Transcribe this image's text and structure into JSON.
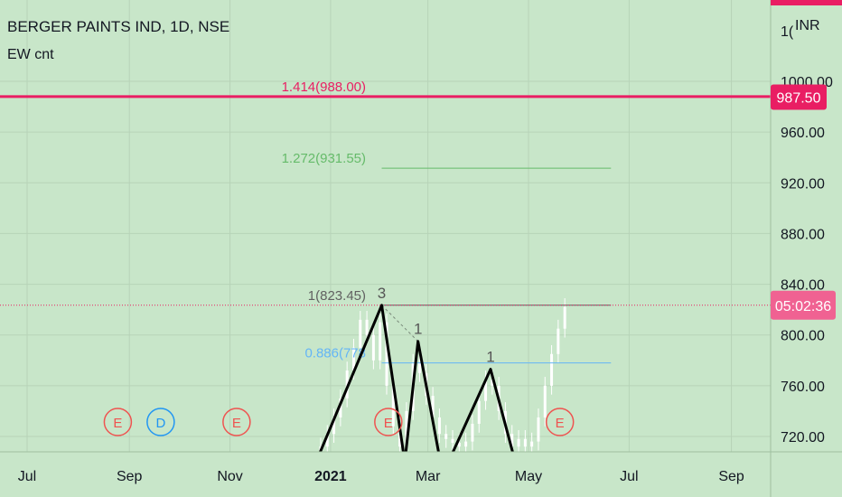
{
  "header": {
    "title": "BERGER PAINTS IND, 1D, NSE",
    "indicator": "EW cnt",
    "currency": "INR"
  },
  "colors": {
    "background": "#c8e6c9",
    "candle": "#ffffff",
    "wave_line": "#000000",
    "fib_1414": "#e91e63",
    "fib_1272": "#66bb6a",
    "fib_1": "#616161",
    "fib_0886": "#64b5f6",
    "price_badge": "#e91e63",
    "earnings": "#ef5350",
    "dividend": "#2196f3"
  },
  "chart_data": {
    "type": "candlestick",
    "symbol": "BERGER PAINTS IND",
    "timeframe": "1D",
    "exchange": "NSE",
    "currency": "INR",
    "ylim": [
      700,
      1040
    ],
    "y_ticks": [
      720,
      760,
      800,
      840,
      880,
      920,
      960,
      1000
    ],
    "y_tick_labels": [
      "720.00",
      "760.00",
      "800.00",
      "840.00",
      "880.00",
      "920.00",
      "960.00",
      "1000.00"
    ],
    "top_clipped_tick": "1(",
    "x_ticks": [
      {
        "date": "2020-07-01",
        "label": "Jul"
      },
      {
        "date": "2020-09-01",
        "label": "Sep"
      },
      {
        "date": "2020-11-01",
        "label": "Nov"
      },
      {
        "date": "2021-01-01",
        "label": "2021",
        "bold": true
      },
      {
        "date": "2021-03-01",
        "label": "Mar"
      },
      {
        "date": "2021-05-01",
        "label": "May"
      },
      {
        "date": "2021-07-01",
        "label": "Jul"
      },
      {
        "date": "2021-09-01",
        "label": "Sep"
      }
    ],
    "price_line": {
      "value": 987.5,
      "label": "987.50"
    },
    "countdown": {
      "value": 823.45,
      "label": "05:02:36"
    },
    "fib_levels": [
      {
        "ratio_label": "1.414(988.00)",
        "value": 988.0,
        "start": "2020-05-01",
        "end": "2021-09-30"
      },
      {
        "ratio_label": "1.272(931.55)",
        "value": 931.55,
        "start": "2021-02-01",
        "end": "2021-06-20"
      },
      {
        "ratio_label": "1(823.45)",
        "value": 823.45,
        "start": "2021-02-01",
        "end": "2021-06-20"
      },
      {
        "ratio_label": "0.886(778",
        "value": 778.0,
        "start": "2021-02-01",
        "end": "2021-06-20"
      }
    ],
    "wave_points": [
      {
        "date": "2020-12-20",
        "price": 690,
        "label": ""
      },
      {
        "date": "2021-02-01",
        "price": 823.45,
        "label": "3"
      },
      {
        "date": "2021-02-15",
        "price": 700,
        "label": ""
      },
      {
        "date": "2021-02-23",
        "price": 795,
        "label": "1"
      },
      {
        "date": "2021-03-10",
        "price": 690,
        "label": ""
      },
      {
        "date": "2021-04-08",
        "price": 773,
        "label": "1"
      },
      {
        "date": "2021-04-25",
        "price": 690,
        "label": ""
      }
    ],
    "dashed_link": [
      {
        "date": "2021-02-01",
        "price": 823.45
      },
      {
        "date": "2021-02-23",
        "price": 795
      }
    ],
    "candles_close": [
      {
        "date": "2020-12-22",
        "close": 700
      },
      {
        "date": "2020-12-26",
        "close": 712
      },
      {
        "date": "2020-12-30",
        "close": 722
      },
      {
        "date": "2021-01-03",
        "close": 735
      },
      {
        "date": "2021-01-07",
        "close": 750
      },
      {
        "date": "2021-01-11",
        "close": 772
      },
      {
        "date": "2021-01-15",
        "close": 790
      },
      {
        "date": "2021-01-19",
        "close": 812
      },
      {
        "date": "2021-01-23",
        "close": 800
      },
      {
        "date": "2021-01-27",
        "close": 780
      },
      {
        "date": "2021-01-31",
        "close": 810
      },
      {
        "date": "2021-02-04",
        "close": 760
      },
      {
        "date": "2021-02-08",
        "close": 728
      },
      {
        "date": "2021-02-12",
        "close": 712
      },
      {
        "date": "2021-02-16",
        "close": 740
      },
      {
        "date": "2021-02-20",
        "close": 778
      },
      {
        "date": "2021-02-24",
        "close": 770
      },
      {
        "date": "2021-02-28",
        "close": 752
      },
      {
        "date": "2021-03-04",
        "close": 735
      },
      {
        "date": "2021-03-08",
        "close": 722
      },
      {
        "date": "2021-03-12",
        "close": 718
      },
      {
        "date": "2021-03-16",
        "close": 715
      },
      {
        "date": "2021-03-20",
        "close": 712
      },
      {
        "date": "2021-03-24",
        "close": 716
      },
      {
        "date": "2021-03-28",
        "close": 730
      },
      {
        "date": "2021-04-01",
        "close": 748
      },
      {
        "date": "2021-04-05",
        "close": 765
      },
      {
        "date": "2021-04-09",
        "close": 760
      },
      {
        "date": "2021-04-13",
        "close": 740
      },
      {
        "date": "2021-04-17",
        "close": 722
      },
      {
        "date": "2021-04-21",
        "close": 712
      },
      {
        "date": "2021-04-25",
        "close": 718
      },
      {
        "date": "2021-04-29",
        "close": 712
      },
      {
        "date": "2021-05-03",
        "close": 716
      },
      {
        "date": "2021-05-07",
        "close": 735
      },
      {
        "date": "2021-05-11",
        "close": 760
      },
      {
        "date": "2021-05-15",
        "close": 785
      },
      {
        "date": "2021-05-19",
        "close": 805
      },
      {
        "date": "2021-05-23",
        "close": 822
      }
    ],
    "events": [
      {
        "date": "2020-06-05",
        "type": "E"
      },
      {
        "date": "2020-08-25",
        "type": "E"
      },
      {
        "date": "2020-09-20",
        "type": "D"
      },
      {
        "date": "2020-11-05",
        "type": "E"
      },
      {
        "date": "2021-02-05",
        "type": "E"
      },
      {
        "date": "2021-05-20",
        "type": "E"
      }
    ]
  }
}
